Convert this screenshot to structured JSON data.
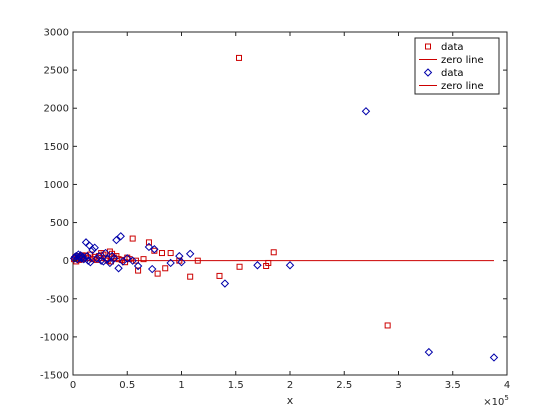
{
  "chart_data": {
    "type": "scatter",
    "xlabel": "x",
    "x_exponent_label": "×10⁵",
    "x_exponent_base": "×10",
    "x_exponent_power": "5",
    "xlim": [
      0,
      400000
    ],
    "ylim": [
      -1500,
      3000
    ],
    "xticks": [
      0,
      50000,
      100000,
      150000,
      200000,
      250000,
      300000,
      350000,
      400000
    ],
    "xtick_labels": [
      "0",
      "0.5",
      "1",
      "1.5",
      "2",
      "2.5",
      "3",
      "3.5",
      "4"
    ],
    "yticks": [
      -1500,
      -1000,
      -500,
      0,
      500,
      1000,
      1500,
      2000,
      2500,
      3000
    ],
    "ytick_labels": [
      "-1500",
      "-1000",
      "-500",
      "0",
      "500",
      "1000",
      "1500",
      "2000",
      "2500",
      "3000"
    ],
    "grid": false,
    "legend_position": "top-right",
    "legend_entries": [
      {
        "label": "data",
        "type": "marker",
        "marker": "square",
        "color": "#cc0000"
      },
      {
        "label": "zero line",
        "type": "line",
        "color": "#cc0000"
      },
      {
        "label": "data",
        "type": "marker",
        "marker": "diamond",
        "color": "#0000aa"
      },
      {
        "label": "zero line",
        "type": "line",
        "color": "#cc0000"
      }
    ],
    "series": [
      {
        "marker": "square",
        "color": "#cc0000",
        "points": [
          [
            1000,
            20
          ],
          [
            2000,
            40
          ],
          [
            3000,
            -10
          ],
          [
            4000,
            60
          ],
          [
            5000,
            30
          ],
          [
            6000,
            10
          ],
          [
            7000,
            50
          ],
          [
            8000,
            20
          ],
          [
            9000,
            70
          ],
          [
            10000,
            30
          ],
          [
            12000,
            60
          ],
          [
            14000,
            40
          ],
          [
            16000,
            80
          ],
          [
            18000,
            20
          ],
          [
            20000,
            50
          ],
          [
            22000,
            10
          ],
          [
            24000,
            60
          ],
          [
            26000,
            100
          ],
          [
            28000,
            80
          ],
          [
            30000,
            30
          ],
          [
            32000,
            0
          ],
          [
            34000,
            120
          ],
          [
            35000,
            -10
          ],
          [
            36000,
            90
          ],
          [
            38000,
            40
          ],
          [
            40000,
            60
          ],
          [
            42000,
            20
          ],
          [
            45000,
            10
          ],
          [
            48000,
            -20
          ],
          [
            50000,
            40
          ],
          [
            52000,
            20
          ],
          [
            55000,
            290
          ],
          [
            58000,
            0
          ],
          [
            60000,
            -130
          ],
          [
            65000,
            20
          ],
          [
            70000,
            240
          ],
          [
            75000,
            130
          ],
          [
            78000,
            -170
          ],
          [
            82000,
            100
          ],
          [
            85000,
            -100
          ],
          [
            90000,
            100
          ],
          [
            98000,
            0
          ],
          [
            108000,
            -210
          ],
          [
            115000,
            0
          ],
          [
            135000,
            -200
          ],
          [
            153000,
            2660
          ],
          [
            153500,
            -80
          ],
          [
            178000,
            -70
          ],
          [
            180000,
            -30
          ],
          [
            185000,
            110
          ],
          [
            290000,
            -850
          ]
        ]
      },
      {
        "marker": "diamond",
        "color": "#0000aa",
        "points": [
          [
            1000,
            30
          ],
          [
            2000,
            50
          ],
          [
            3000,
            60
          ],
          [
            4000,
            20
          ],
          [
            5000,
            80
          ],
          [
            6000,
            40
          ],
          [
            7000,
            70
          ],
          [
            8000,
            30
          ],
          [
            9000,
            50
          ],
          [
            10000,
            20
          ],
          [
            12000,
            240
          ],
          [
            13000,
            60
          ],
          [
            14000,
            0
          ],
          [
            15000,
            200
          ],
          [
            16000,
            -20
          ],
          [
            18000,
            140
          ],
          [
            20000,
            170
          ],
          [
            22000,
            30
          ],
          [
            24000,
            60
          ],
          [
            26000,
            0
          ],
          [
            28000,
            -10
          ],
          [
            30000,
            100
          ],
          [
            32000,
            20
          ],
          [
            34000,
            -30
          ],
          [
            36000,
            60
          ],
          [
            38000,
            30
          ],
          [
            40000,
            270
          ],
          [
            42000,
            -100
          ],
          [
            44000,
            320
          ],
          [
            46000,
            -10
          ],
          [
            50000,
            30
          ],
          [
            55000,
            0
          ],
          [
            60000,
            -70
          ],
          [
            70000,
            180
          ],
          [
            73000,
            -110
          ],
          [
            75000,
            150
          ],
          [
            90000,
            -30
          ],
          [
            98000,
            60
          ],
          [
            100000,
            -20
          ],
          [
            108000,
            90
          ],
          [
            140000,
            -300
          ],
          [
            170000,
            -60
          ],
          [
            200000,
            -60
          ],
          [
            270000,
            1960
          ],
          [
            328000,
            -1200
          ],
          [
            388000,
            -1270
          ]
        ]
      }
    ],
    "zero_line": {
      "x_start": 0,
      "x_end": 388000,
      "y": 0,
      "color": "#cc0000"
    }
  }
}
